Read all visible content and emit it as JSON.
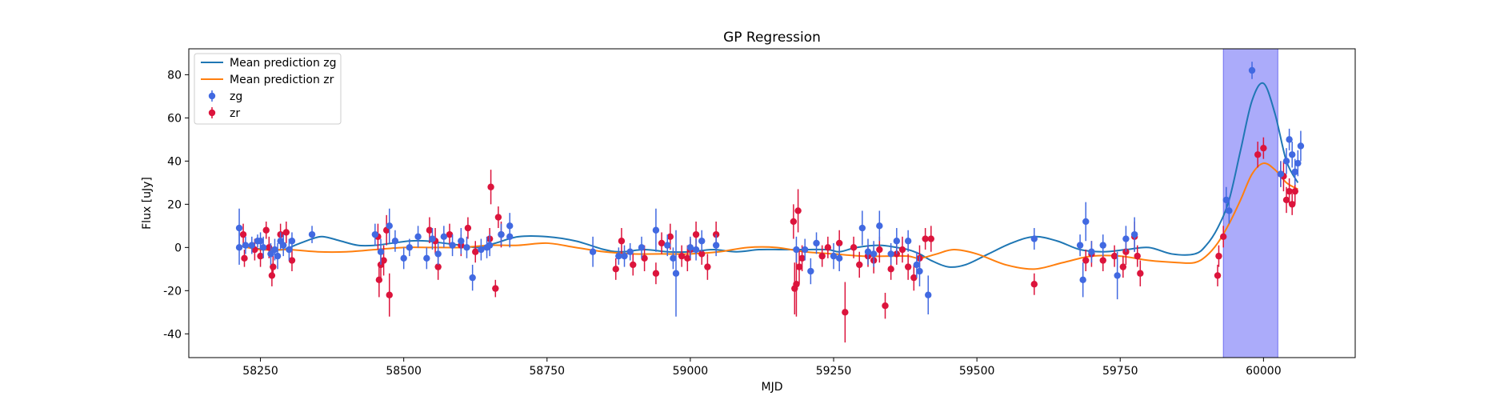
{
  "chart_data": {
    "type": "scatter",
    "title": "GP Regression",
    "xlabel": "MJD",
    "ylabel": "Flux [uJy]",
    "xlim": [
      58125,
      60160
    ],
    "ylim": [
      -51,
      92
    ],
    "xticks": [
      58250,
      58500,
      58750,
      59000,
      59250,
      59500,
      59750,
      60000
    ],
    "yticks": [
      -40,
      -20,
      0,
      20,
      40,
      60,
      80
    ],
    "legend": {
      "placement": "top-left",
      "entries": [
        "Mean prediction zg",
        "Mean prediction zr",
        "zg",
        "zr"
      ]
    },
    "shaded_region": {
      "x0": 59930,
      "x1": 60025,
      "color": "#a6a6fa"
    },
    "colors": {
      "zg_line": "#1f77b4",
      "zr_line": "#ff7f0e",
      "zg_points": "#4169e1",
      "zr_points": "#dc143c"
    },
    "series": [
      {
        "name": "Mean prediction zg",
        "kind": "line",
        "x": [
          58210,
          58230,
          58260,
          58290,
          58310,
          58340,
          58360,
          58390,
          58420,
          58450,
          58480,
          58510,
          58540,
          58570,
          58600,
          58630,
          58660,
          58700,
          58750,
          58800,
          58850,
          58880,
          58920,
          58960,
          59000,
          59040,
          59080,
          59120,
          59160,
          59200,
          59240,
          59260,
          59290,
          59330,
          59360,
          59380,
          59400,
          59420,
          59450,
          59480,
          59520,
          59560,
          59600,
          59640,
          59680,
          59720,
          59760,
          59800,
          59840,
          59880,
          59900,
          59920,
          59940,
          59960,
          59980,
          60000,
          60020,
          60040,
          60060
        ],
        "y": [
          1,
          0,
          -1,
          -1,
          1,
          4,
          5,
          3,
          1,
          1,
          2,
          3,
          3,
          2,
          1,
          0,
          2,
          5,
          5,
          3,
          -1,
          -2,
          -1,
          -2,
          -2,
          -1,
          -2,
          -1,
          -1,
          -1,
          -1,
          -2,
          0,
          1,
          0,
          -1,
          -3,
          -6,
          -9,
          -8,
          -3,
          2,
          5,
          3,
          -1,
          -2,
          -1,
          0,
          -3,
          -3,
          1,
          9,
          22,
          45,
          68,
          76,
          62,
          40,
          30
        ]
      },
      {
        "name": "Mean prediction zr",
        "kind": "line",
        "x": [
          58210,
          58250,
          58300,
          58350,
          58400,
          58450,
          58500,
          58550,
          58600,
          58650,
          58700,
          58750,
          58800,
          58850,
          58900,
          58950,
          59000,
          59050,
          59100,
          59150,
          59200,
          59250,
          59300,
          59350,
          59380,
          59400,
          59430,
          59460,
          59500,
          59550,
          59600,
          59650,
          59700,
          59750,
          59800,
          59850,
          59880,
          59900,
          59920,
          59940,
          59960,
          59980,
          60000,
          60020,
          60040,
          60060
        ],
        "y": [
          1,
          -1,
          -1,
          -2,
          -2,
          -1,
          0,
          0,
          0,
          1,
          1,
          2,
          0,
          -2,
          -3,
          -3,
          -3,
          -2,
          0,
          0,
          -2,
          -3,
          -4,
          -4,
          -4,
          -5,
          -3,
          -1,
          -3,
          -8,
          -10,
          -7,
          -4,
          -4,
          -6,
          -7,
          -7,
          -4,
          2,
          11,
          22,
          34,
          39,
          36,
          30,
          27
        ]
      },
      {
        "name": "zg",
        "kind": "errorbar",
        "points": [
          [
            58213,
            9,
            9
          ],
          [
            58213,
            0,
            8
          ],
          [
            58224,
            1,
            4
          ],
          [
            58235,
            1,
            4
          ],
          [
            58245,
            3,
            3
          ],
          [
            58250,
            3,
            4
          ],
          [
            58255,
            0,
            5
          ],
          [
            58268,
            -3,
            5
          ],
          [
            58275,
            -1,
            5
          ],
          [
            58280,
            -4,
            6
          ],
          [
            58285,
            3,
            4
          ],
          [
            58290,
            1,
            5
          ],
          [
            58300,
            -1,
            5
          ],
          [
            58305,
            3,
            4
          ],
          [
            58340,
            6,
            4
          ],
          [
            58450,
            6,
            5
          ],
          [
            58460,
            -2,
            6
          ],
          [
            58475,
            10,
            8
          ],
          [
            58485,
            3,
            5
          ],
          [
            58500,
            -5,
            5
          ],
          [
            58510,
            0,
            4
          ],
          [
            58525,
            5,
            5
          ],
          [
            58540,
            -5,
            5
          ],
          [
            58550,
            4,
            5
          ],
          [
            58560,
            -3,
            5
          ],
          [
            58570,
            5,
            5
          ],
          [
            58585,
            1,
            5
          ],
          [
            58600,
            3,
            6
          ],
          [
            58610,
            0,
            5
          ],
          [
            58620,
            -14,
            6
          ],
          [
            58635,
            -1,
            5
          ],
          [
            58645,
            0,
            5
          ],
          [
            58650,
            1,
            5
          ],
          [
            58670,
            6,
            5
          ],
          [
            58685,
            10,
            6
          ],
          [
            58685,
            5,
            5
          ],
          [
            58830,
            -2,
            7
          ],
          [
            58875,
            -4,
            4
          ],
          [
            58885,
            -4,
            5
          ],
          [
            58895,
            -2,
            4
          ],
          [
            58915,
            0,
            5
          ],
          [
            58940,
            8,
            10
          ],
          [
            58960,
            1,
            5
          ],
          [
            58970,
            -5,
            5
          ],
          [
            58975,
            -12,
            20
          ],
          [
            59000,
            0,
            5
          ],
          [
            59010,
            -1,
            5
          ],
          [
            59020,
            3,
            5
          ],
          [
            59045,
            1,
            5
          ],
          [
            59185,
            -1,
            6
          ],
          [
            59200,
            -1,
            5
          ],
          [
            59210,
            -11,
            6
          ],
          [
            59220,
            2,
            5
          ],
          [
            59250,
            -4,
            6
          ],
          [
            59260,
            -5,
            6
          ],
          [
            59300,
            9,
            8
          ],
          [
            59310,
            -2,
            6
          ],
          [
            59320,
            -3,
            6
          ],
          [
            59330,
            10,
            7
          ],
          [
            59350,
            -3,
            5
          ],
          [
            59360,
            3,
            6
          ],
          [
            59380,
            3,
            5
          ],
          [
            59395,
            -8,
            6
          ],
          [
            59400,
            -11,
            7
          ],
          [
            59415,
            -22,
            9
          ],
          [
            59600,
            4,
            5
          ],
          [
            59680,
            1,
            5
          ],
          [
            59685,
            -15,
            8
          ],
          [
            59690,
            12,
            9
          ],
          [
            59700,
            -2,
            5
          ],
          [
            59720,
            1,
            5
          ],
          [
            59745,
            -13,
            11
          ],
          [
            59760,
            4,
            6
          ],
          [
            59775,
            6,
            8
          ],
          [
            59935,
            22,
            6
          ],
          [
            59940,
            17,
            6
          ],
          [
            59980,
            82,
            4
          ],
          [
            60030,
            34,
            6
          ],
          [
            60040,
            40,
            6
          ],
          [
            60045,
            50,
            5
          ],
          [
            60050,
            43,
            6
          ],
          [
            60055,
            35,
            6
          ],
          [
            60060,
            39,
            6
          ],
          [
            60065,
            47,
            7
          ]
        ]
      },
      {
        "name": "zr",
        "kind": "errorbar",
        "points": [
          [
            58220,
            6,
            5
          ],
          [
            58222,
            -5,
            4
          ],
          [
            58240,
            -1,
            5
          ],
          [
            58250,
            -4,
            5
          ],
          [
            58260,
            8,
            4
          ],
          [
            58265,
            0,
            5
          ],
          [
            58270,
            -13,
            5
          ],
          [
            58272,
            -9,
            5
          ],
          [
            58285,
            6,
            5
          ],
          [
            58295,
            7,
            5
          ],
          [
            58305,
            -6,
            5
          ],
          [
            58455,
            5,
            6
          ],
          [
            58457,
            -15,
            8
          ],
          [
            58460,
            -8,
            6
          ],
          [
            58465,
            -6,
            7
          ],
          [
            58470,
            8,
            7
          ],
          [
            58475,
            -22,
            10
          ],
          [
            58545,
            8,
            6
          ],
          [
            58555,
            3,
            6
          ],
          [
            58560,
            -9,
            6
          ],
          [
            58580,
            6,
            5
          ],
          [
            58600,
            1,
            5
          ],
          [
            58612,
            9,
            5
          ],
          [
            58625,
            -2,
            5
          ],
          [
            58650,
            4,
            5
          ],
          [
            58652,
            28,
            8
          ],
          [
            58660,
            -19,
            4
          ],
          [
            58665,
            14,
            5
          ],
          [
            58670,
            6,
            6
          ],
          [
            58870,
            -10,
            5
          ],
          [
            58880,
            3,
            6
          ],
          [
            58900,
            -8,
            5
          ],
          [
            58920,
            -5,
            6
          ],
          [
            58940,
            -12,
            5
          ],
          [
            58950,
            2,
            5
          ],
          [
            58965,
            5,
            6
          ],
          [
            58985,
            -4,
            5
          ],
          [
            58995,
            -5,
            6
          ],
          [
            59000,
            -1,
            5
          ],
          [
            59010,
            6,
            6
          ],
          [
            59020,
            -3,
            5
          ],
          [
            59030,
            -9,
            6
          ],
          [
            59045,
            6,
            6
          ],
          [
            59180,
            12,
            8
          ],
          [
            59182,
            -19,
            12
          ],
          [
            59185,
            -17,
            15
          ],
          [
            59188,
            17,
            10
          ],
          [
            59190,
            -9,
            8
          ],
          [
            59195,
            -5,
            6
          ],
          [
            59230,
            -4,
            5
          ],
          [
            59240,
            0,
            5
          ],
          [
            59260,
            2,
            6
          ],
          [
            59270,
            -30,
            14
          ],
          [
            59285,
            0,
            5
          ],
          [
            59295,
            -8,
            6
          ],
          [
            59310,
            -4,
            5
          ],
          [
            59320,
            -6,
            6
          ],
          [
            59330,
            -1,
            6
          ],
          [
            59340,
            -27,
            6
          ],
          [
            59350,
            -10,
            5
          ],
          [
            59360,
            -3,
            5
          ],
          [
            59370,
            -1,
            6
          ],
          [
            59380,
            -9,
            6
          ],
          [
            59390,
            -14,
            6
          ],
          [
            59400,
            -5,
            6
          ],
          [
            59410,
            4,
            5
          ],
          [
            59420,
            4,
            6
          ],
          [
            59600,
            -17,
            5
          ],
          [
            59690,
            -6,
            5
          ],
          [
            59700,
            -3,
            6
          ],
          [
            59720,
            -6,
            5
          ],
          [
            59740,
            -4,
            5
          ],
          [
            59755,
            -9,
            5
          ],
          [
            59760,
            -2,
            6
          ],
          [
            59775,
            5,
            7
          ],
          [
            59780,
            -4,
            5
          ],
          [
            59785,
            -12,
            6
          ],
          [
            59920,
            -13,
            5
          ],
          [
            59922,
            -4,
            5
          ],
          [
            59930,
            5,
            5
          ],
          [
            59990,
            43,
            6
          ],
          [
            60000,
            46,
            5
          ],
          [
            60030,
            34,
            6
          ],
          [
            60035,
            33,
            7
          ],
          [
            60040,
            22,
            6
          ],
          [
            60045,
            26,
            6
          ],
          [
            60050,
            20,
            5
          ],
          [
            60055,
            26,
            6
          ]
        ]
      }
    ]
  }
}
